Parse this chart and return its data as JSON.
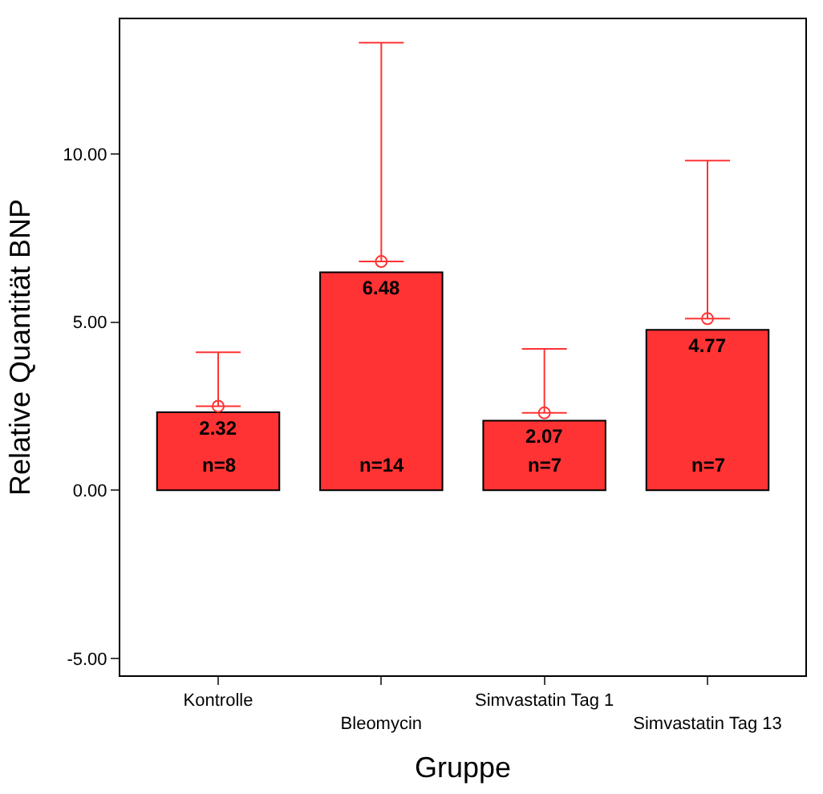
{
  "chart_data": {
    "type": "bar",
    "xlabel": "Gruppe",
    "ylabel": "Relative Quantität BNP",
    "categories": [
      "Kontrolle",
      "Bleomycin",
      "Simvastatin Tag 1",
      "Simvastatin Tag 13"
    ],
    "series": [
      {
        "color": "#ff3333",
        "values": [
          2.32,
          6.48,
          2.07,
          4.77
        ],
        "value_labels": [
          "2.32",
          "6.48",
          "2.07",
          "4.77"
        ]
      },
      {
        "type": "scatter",
        "color": "#ff3333",
        "marker": "circle",
        "values": [
          2.5,
          6.8,
          2.3,
          5.1
        ],
        "errors": [
          [
            2.5,
            4.1
          ],
          [
            6.8,
            13.3
          ],
          [
            2.3,
            4.2
          ],
          [
            5.1,
            9.8
          ]
        ]
      }
    ],
    "annotations": [
      "n=8",
      "n=14",
      "n=7",
      "n=7"
    ],
    "ylim": [
      -5.5,
      14
    ],
    "yticks": [
      {
        "value": -5,
        "label": "-5.00"
      },
      {
        "value": 0,
        "label": "0.00"
      },
      {
        "value": 5,
        "label": "5.00"
      },
      {
        "value": 10,
        "label": "10.00"
      }
    ]
  }
}
